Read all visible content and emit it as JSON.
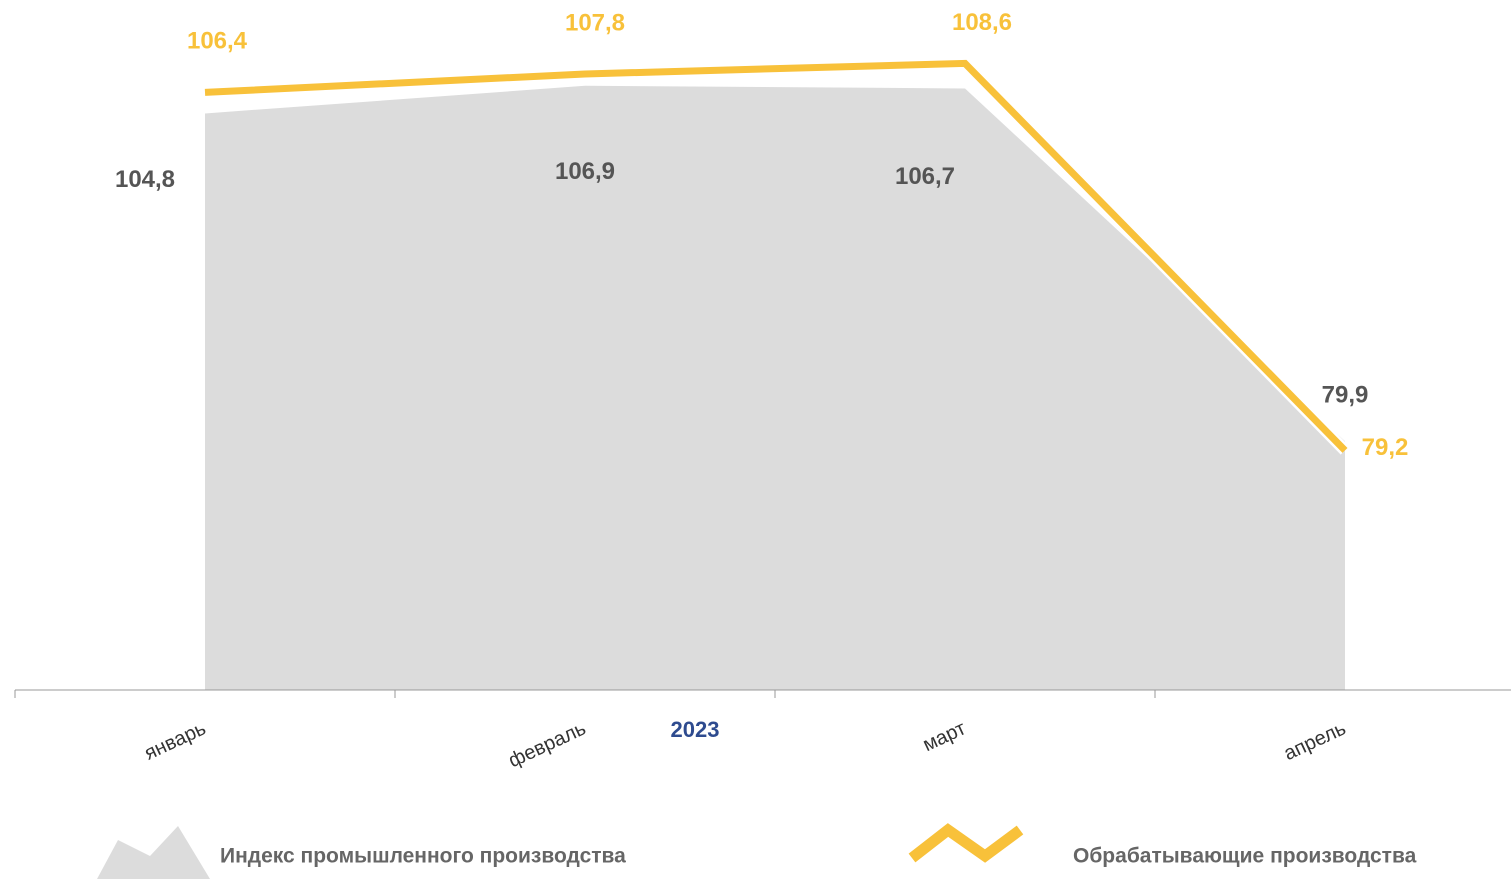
{
  "chart_data": {
    "type": "area_line",
    "categories": [
      "январь",
      "февраль",
      "март",
      "апрель"
    ],
    "group_label": "2023",
    "ylim": [
      61,
      110
    ],
    "series": [
      {
        "name": "Индекс промышленного производства",
        "type": "area",
        "color": "#dcdcdc",
        "label_color": "#555555",
        "values": [
          104.8,
          106.9,
          106.7,
          79.9
        ],
        "value_labels": [
          "104,8",
          "106,9",
          "106,7",
          "79,9"
        ]
      },
      {
        "name": "Обрабатывающие производства",
        "type": "line",
        "color": "#f8c13a",
        "label_color": "#f8c13a",
        "values": [
          106.4,
          107.8,
          108.6,
          79.2
        ],
        "value_labels": [
          "106,4",
          "107,8",
          "108,6",
          "79,2"
        ]
      }
    ]
  }
}
